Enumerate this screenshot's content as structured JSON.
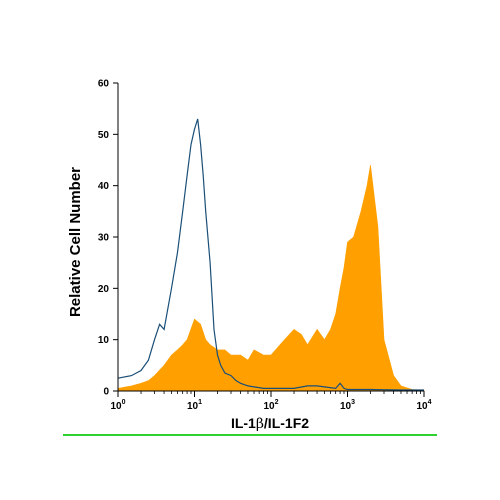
{
  "chart_data": {
    "type": "area",
    "title": "",
    "xlabel_main": "IL-1",
    "xlabel_greek": "β",
    "xlabel_rest": "/IL-1F2",
    "ylabel": "Relative Cell Number",
    "x_scale": "log",
    "xlim": [
      1,
      10000
    ],
    "ylim": [
      0,
      60
    ],
    "x_ticks": [
      {
        "base": "10",
        "exp": "0",
        "value": 1
      },
      {
        "base": "10",
        "exp": "1",
        "value": 10
      },
      {
        "base": "10",
        "exp": "2",
        "value": 100
      },
      {
        "base": "10",
        "exp": "3",
        "value": 1000
      },
      {
        "base": "10",
        "exp": "4",
        "value": 10000
      }
    ],
    "y_ticks": [
      "0",
      "10",
      "20",
      "30",
      "40",
      "50",
      "60"
    ],
    "series": [
      {
        "style": "outline",
        "color": "#1a4f78",
        "x": [
          1,
          1.5,
          2,
          2.5,
          3,
          3.5,
          4,
          5,
          6,
          7,
          8,
          9,
          10,
          11,
          12,
          13,
          14,
          16,
          18,
          20,
          22,
          25,
          30,
          35,
          40,
          50,
          60,
          80,
          100,
          200,
          300,
          400,
          500,
          700,
          800,
          900,
          1000,
          2000,
          5000,
          10000
        ],
        "y": [
          2.5,
          3,
          4,
          6,
          10,
          13,
          12,
          20,
          27,
          35,
          42,
          48,
          51,
          53,
          48,
          42,
          35,
          25,
          12,
          7,
          5,
          3.5,
          3,
          2,
          1.5,
          1,
          0.8,
          0.5,
          0.5,
          0.5,
          1,
          1,
          0.8,
          0.5,
          1.5,
          0.5,
          0.3,
          0.3,
          0.2,
          0.2
        ]
      },
      {
        "style": "filled",
        "color": "#ff9f00",
        "x": [
          1,
          1.5,
          2,
          2.5,
          3,
          4,
          5,
          6,
          7,
          8,
          10,
          12,
          14,
          16,
          20,
          25,
          30,
          40,
          50,
          60,
          80,
          100,
          150,
          200,
          250,
          300,
          400,
          500,
          600,
          700,
          800,
          900,
          1000,
          1200,
          1500,
          1800,
          2000,
          2500,
          3000,
          4000,
          5000,
          7000,
          10000
        ],
        "y": [
          0.5,
          1,
          1.5,
          2,
          3,
          5,
          7,
          8,
          9,
          10,
          14,
          13,
          10,
          9,
          8,
          8,
          7,
          7,
          6,
          8,
          7,
          7,
          10,
          12,
          11,
          9,
          12,
          10,
          12,
          15,
          20,
          24,
          29,
          30,
          35,
          40,
          44,
          32,
          10,
          3,
          1,
          0.3,
          0.2
        ]
      }
    ]
  }
}
